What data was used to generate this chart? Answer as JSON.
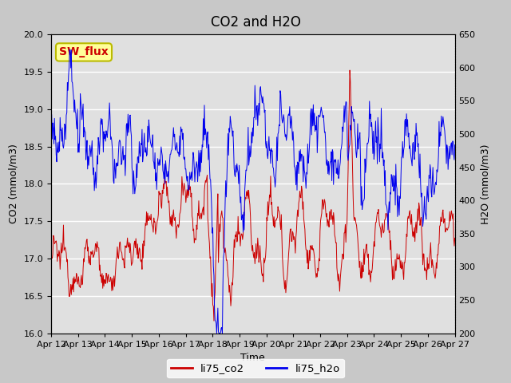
{
  "title": "CO2 and H2O",
  "xlabel": "Time",
  "ylabel_left": "CO2 (mmol/m3)",
  "ylabel_right": "H2O (mmol/m3)",
  "co2_ylim": [
    16.0,
    20.0
  ],
  "h2o_ylim": [
    200,
    650
  ],
  "co2_color": "#cc0000",
  "h2o_color": "#0000ee",
  "fig_facecolor": "#c8c8c8",
  "ax_facecolor": "#e0e0e0",
  "annotation_text": "SW_flux",
  "annotation_color": "#cc0000",
  "annotation_bg": "#ffff99",
  "annotation_border": "#bbbb00",
  "x_tick_labels": [
    "Apr 12",
    "Apr 13",
    "Apr 14",
    "Apr 15",
    "Apr 16",
    "Apr 17",
    "Apr 18",
    "Apr 19",
    "Apr 20",
    "Apr 21",
    "Apr 22",
    "Apr 23",
    "Apr 24",
    "Apr 25",
    "Apr 26",
    "Apr 27"
  ],
  "legend_entries": [
    "li75_co2",
    "li75_h2o"
  ],
  "title_fontsize": 12,
  "axis_fontsize": 9,
  "tick_fontsize": 8
}
